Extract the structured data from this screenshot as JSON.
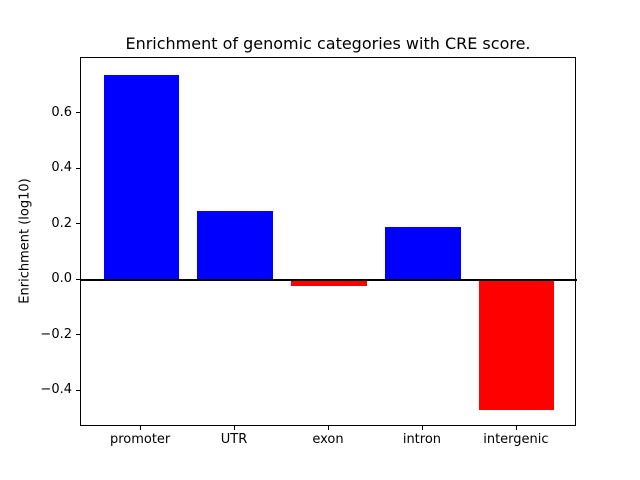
{
  "chart_data": {
    "type": "bar",
    "title": "Enrichment of genomic categories with CRE score.",
    "xlabel": "",
    "ylabel": "Enrichment (log10)",
    "categories": [
      "promoter",
      "UTR",
      "exon",
      "intron",
      "intergenic"
    ],
    "values": [
      0.74,
      0.25,
      -0.02,
      0.19,
      -0.47
    ],
    "bar_colors": [
      "#0000ff",
      "#0000ff",
      "#ff0000",
      "#0000ff",
      "#ff0000"
    ],
    "positive_color": "#0000ff",
    "negative_color": "#ff0000",
    "yticks": [
      {
        "value": 0.6,
        "label": "0.6"
      },
      {
        "value": 0.4,
        "label": "0.4"
      },
      {
        "value": 0.2,
        "label": "0.2"
      },
      {
        "value": 0.0,
        "label": "0.0"
      },
      {
        "value": -0.2,
        "label": "−0.2"
      },
      {
        "value": -0.4,
        "label": "−0.4"
      }
    ],
    "ylim": [
      -0.53,
      0.8
    ],
    "xlim": [
      -0.64,
      4.64
    ],
    "bar_width_fraction": 0.8,
    "zero_line": true,
    "grid": false,
    "legend": false,
    "background_color": "#ffffff",
    "axis_color": "#000000"
  }
}
